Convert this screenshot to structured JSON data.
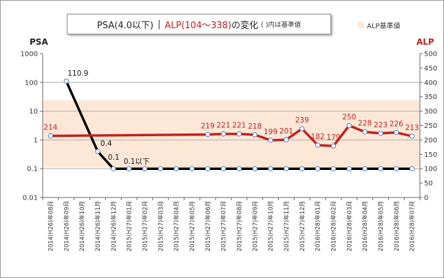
{
  "title": {
    "psa_part": "PSA(4.0以下)",
    "separator": "|",
    "alp_part": "ALP(104〜338)",
    "suffix": "の変化",
    "note": "(  )内は基準値"
  },
  "legend": {
    "band_label": "ALP基準値",
    "band_color": "#fde8d8"
  },
  "colors": {
    "psa_line": "#000000",
    "alp_line": "#c0211f",
    "alp_label": "#c0211f",
    "marker_fill": "#ffffff",
    "marker_stroke": "#4f81bd"
  },
  "chart_data": {
    "type": "line",
    "x": [
      "2014(H26)年08月",
      "2014(H26)年09月",
      "2014(H26)年10月",
      "2014(H26)年11月",
      "2014(H26)年12月",
      "2015(H27)年01月",
      "2015(H27)年02月",
      "2015(H27)年03月",
      "2015(H27)年04月",
      "2015(H27)年05月",
      "2015(H27)年06月",
      "2015(H27)年07月",
      "2015(H27)年08月",
      "2015(H27)年09月",
      "2015(H27)年10月",
      "2015(H27)年11月",
      "2015(H27)年12月",
      "2016(H28)年01月",
      "2016(H28)年02月",
      "2016(H28)年03月",
      "2016(H28)年04月",
      "2016(H28)年05月",
      "2016(H28)年06月",
      "2016(H28)年07月"
    ],
    "left_axis": {
      "label": "PSA",
      "scale": "log",
      "ticks": [
        "1000",
        "100",
        "10",
        "1",
        "0.1",
        "0.01"
      ]
    },
    "right_axis": {
      "label": "ALP",
      "ylim": [
        0,
        500
      ],
      "ticks": [
        "500",
        "450",
        "400",
        "350",
        "300",
        "250",
        "200",
        "150",
        "100",
        "50",
        "0"
      ]
    },
    "band": {
      "axis": "right",
      "range": [
        104,
        338
      ]
    },
    "series": [
      {
        "name": "PSA",
        "axis": "left",
        "points": [
          [
            1,
            110.9
          ],
          [
            3,
            0.4
          ],
          [
            4,
            0.1
          ],
          [
            5,
            0.1
          ],
          [
            6,
            0.1
          ],
          [
            7,
            0.1
          ],
          [
            8,
            0.1
          ],
          [
            9,
            0.1
          ],
          [
            10,
            0.1
          ],
          [
            11,
            0.1
          ],
          [
            12,
            0.1
          ],
          [
            13,
            0.1
          ],
          [
            14,
            0.1
          ],
          [
            15,
            0.1
          ],
          [
            16,
            0.1
          ],
          [
            17,
            0.1
          ],
          [
            18,
            0.1
          ],
          [
            19,
            0.1
          ],
          [
            20,
            0.1
          ],
          [
            21,
            0.1
          ],
          [
            22,
            0.1
          ],
          [
            23,
            0.1
          ]
        ],
        "labels": [
          {
            "i": 1,
            "text": "110.9"
          },
          {
            "i": 3,
            "text": "0.4"
          },
          {
            "i": 4,
            "text": "0.1"
          },
          {
            "i": 5,
            "text": "0.1以下"
          }
        ]
      },
      {
        "name": "ALP",
        "axis": "right",
        "points": [
          [
            0,
            214
          ],
          [
            10,
            219
          ],
          [
            11,
            221
          ],
          [
            12,
            221
          ],
          [
            13,
            218
          ],
          [
            14,
            199
          ],
          [
            15,
            201
          ],
          [
            16,
            239
          ],
          [
            17,
            182
          ],
          [
            18,
            179
          ],
          [
            19,
            250
          ],
          [
            20,
            228
          ],
          [
            21,
            223
          ],
          [
            22,
            226
          ],
          [
            23,
            213
          ]
        ],
        "labels": [
          {
            "i": 0,
            "text": "214"
          },
          {
            "i": 10,
            "text": "219"
          },
          {
            "i": 11,
            "text": "221"
          },
          {
            "i": 12,
            "text": "221"
          },
          {
            "i": 13,
            "text": "218"
          },
          {
            "i": 14,
            "text": "199"
          },
          {
            "i": 15,
            "text": "201"
          },
          {
            "i": 16,
            "text": "239"
          },
          {
            "i": 17,
            "text": "182"
          },
          {
            "i": 18,
            "text": "179"
          },
          {
            "i": 19,
            "text": "250"
          },
          {
            "i": 20,
            "text": "228"
          },
          {
            "i": 21,
            "text": "223"
          },
          {
            "i": 22,
            "text": "226"
          },
          {
            "i": 23,
            "text": "213"
          }
        ]
      }
    ]
  }
}
